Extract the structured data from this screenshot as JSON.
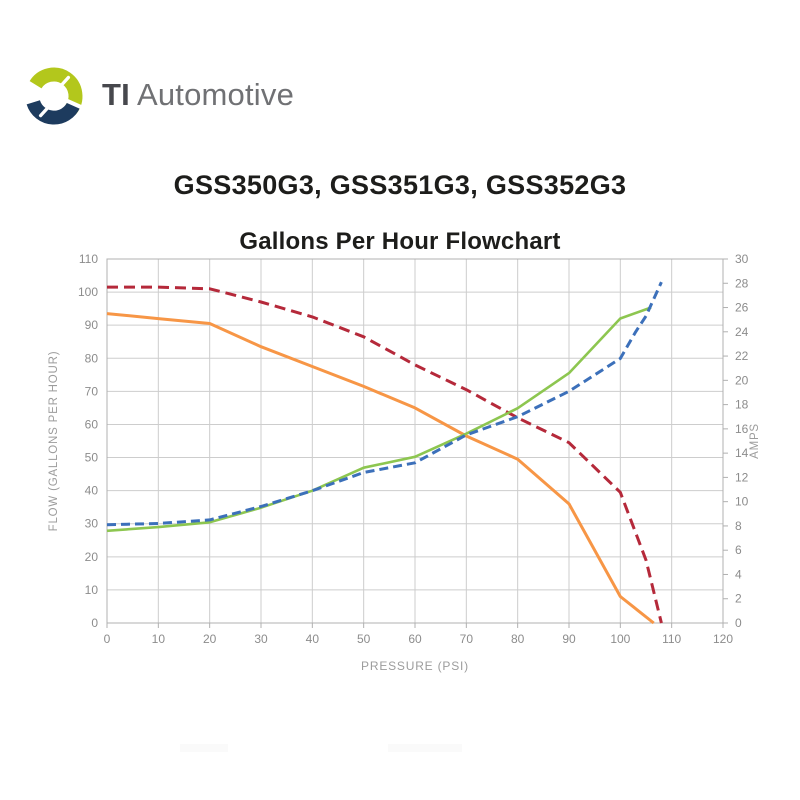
{
  "brand": {
    "name_bold": "TI",
    "name_regular": "Automotive",
    "logo_green": "#b3c71c",
    "logo_navy": "#1d3b5e"
  },
  "header": {
    "product_title": "GSS350G3, GSS351G3, GSS352G3"
  },
  "chart_data": {
    "type": "line",
    "title": "Gallons Per Hour Flowchart",
    "xlabel": "PRESSURE (PSI)",
    "ylabel_left": "FLOW (GALLONS PER HOUR)",
    "ylabel_right": "AMPS",
    "x_axis": {
      "min": 0,
      "max": 120,
      "step": 10
    },
    "y_left_axis": {
      "min": 0,
      "max": 110,
      "step": 10
    },
    "y_right_axis": {
      "min": 0,
      "max": 30,
      "step": 2
    },
    "grid": true,
    "legend": "none",
    "style": {
      "grid_color": "#cdcdcd",
      "border_color": "#b0b0b0",
      "tick_label_color": "#8c8c8c",
      "axis_title_color": "#9c9c9c"
    },
    "series": [
      {
        "name": "flow-red-dashed",
        "axis": "left",
        "units": "GPH",
        "color": "#b5293a",
        "dash": "11 6",
        "width": 3,
        "points": [
          [
            0,
            101.5
          ],
          [
            10,
            101.5
          ],
          [
            20,
            101
          ],
          [
            30,
            97
          ],
          [
            40,
            92.5
          ],
          [
            50,
            86.5
          ],
          [
            60,
            78
          ],
          [
            70,
            70.5
          ],
          [
            80,
            62
          ],
          [
            90,
            54.5
          ],
          [
            100,
            39.5
          ],
          [
            105,
            19
          ],
          [
            108,
            0
          ]
        ]
      },
      {
        "name": "flow-orange-solid",
        "axis": "left",
        "units": "GPH",
        "color": "#f79646",
        "dash": null,
        "width": 3,
        "points": [
          [
            0,
            93.5
          ],
          [
            10,
            92
          ],
          [
            20,
            90.5
          ],
          [
            30,
            83.5
          ],
          [
            40,
            77.5
          ],
          [
            50,
            71.5
          ],
          [
            60,
            65
          ],
          [
            70,
            56.5
          ],
          [
            80,
            49.5
          ],
          [
            90,
            36
          ],
          [
            100,
            8
          ],
          [
            106.5,
            0
          ]
        ]
      },
      {
        "name": "amps-green-solid",
        "axis": "right",
        "units": "AMPS",
        "color": "#8dc650",
        "dash": null,
        "width": 2.6,
        "points": [
          [
            0,
            7.6
          ],
          [
            10,
            7.9
          ],
          [
            20,
            8.3
          ],
          [
            30,
            9.5
          ],
          [
            40,
            10.9
          ],
          [
            50,
            12.8
          ],
          [
            60,
            13.7
          ],
          [
            70,
            15.6
          ],
          [
            80,
            17.7
          ],
          [
            90,
            20.6
          ],
          [
            100,
            25.1
          ],
          [
            106,
            26
          ]
        ]
      },
      {
        "name": "amps-blue-dashed",
        "axis": "right",
        "units": "AMPS",
        "color": "#3c70ba",
        "dash": "9 5",
        "width": 3,
        "points": [
          [
            0,
            8.1
          ],
          [
            10,
            8.2
          ],
          [
            20,
            8.5
          ],
          [
            30,
            9.6
          ],
          [
            40,
            10.9
          ],
          [
            50,
            12.4
          ],
          [
            60,
            13.2
          ],
          [
            70,
            15.5
          ],
          [
            80,
            17
          ],
          [
            90,
            19.1
          ],
          [
            100,
            21.8
          ],
          [
            103,
            24
          ],
          [
            105,
            25.3
          ],
          [
            108,
            28.1
          ]
        ]
      }
    ]
  }
}
